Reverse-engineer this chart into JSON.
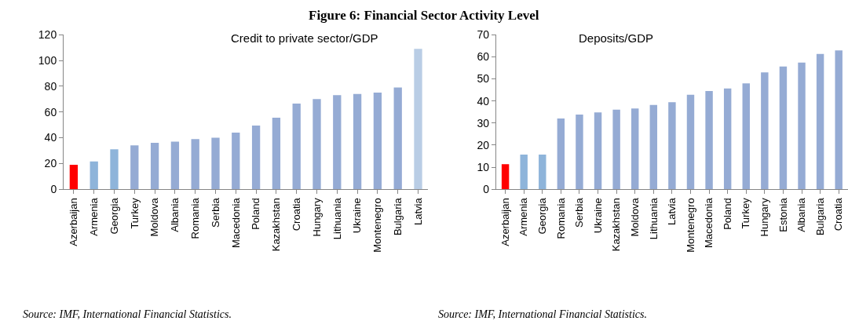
{
  "chart_data": [
    {
      "type": "bar",
      "title": "Figure 6: Financial Sector Activity Level",
      "subtitle": "Credit to private sector/GDP",
      "categories": [
        "Azerbaijan",
        "Armenia",
        "Georgia",
        "Turkey",
        "Moldova",
        "Albania",
        "Romania",
        "Serbia",
        "Macedonia",
        "Poland",
        "Kazakhstan",
        "Croatia",
        "Hungary",
        "Lithuania",
        "Ukraine",
        "Montenegro",
        "Bulgaria",
        "Latvia"
      ],
      "values": [
        19,
        21.5,
        31,
        34,
        36,
        37,
        39,
        40,
        44,
        49.5,
        55.5,
        66.5,
        70,
        73,
        74,
        75,
        79,
        109
      ],
      "colors": [
        "#ff0000",
        "#8eb4da",
        "#8eb4da",
        "#95abd4",
        "#95abd4",
        "#95abd4",
        "#95abd4",
        "#95abd4",
        "#95abd4",
        "#95abd4",
        "#95abd4",
        "#95abd4",
        "#95abd4",
        "#95abd4",
        "#95abd4",
        "#95abd4",
        "#95abd4",
        "#b9cde5"
      ],
      "ylim": [
        0,
        120
      ],
      "yticks": [
        0,
        20,
        40,
        60,
        80,
        100,
        120
      ],
      "annotations": [
        "Source: IMF, International Financial Statistics."
      ]
    },
    {
      "type": "bar",
      "subtitle": "Deposits/GDP",
      "categories": [
        "Azerbaijan",
        "Armenia",
        "Georgia",
        "Romania",
        "Serbia",
        "Ukraine",
        "Kazakhstan",
        "Moldova",
        "Lithuania",
        "Latvia",
        "Montenegro",
        "Macedonia",
        "Poland",
        "Turkey",
        "Hungary",
        "Estonia",
        "Albania",
        "Bulgaria",
        "Croatia"
      ],
      "values": [
        11.3,
        15.7,
        15.7,
        32,
        33.8,
        34.8,
        36,
        36.6,
        38.2,
        39.4,
        42.8,
        44.5,
        45.6,
        47.9,
        52.9,
        55.6,
        57.4,
        61.3,
        62.9
      ],
      "colors": [
        "#ff0000",
        "#8eb4da",
        "#8eb4da",
        "#95abd4",
        "#95abd4",
        "#95abd4",
        "#95abd4",
        "#95abd4",
        "#95abd4",
        "#95abd4",
        "#95abd4",
        "#95abd4",
        "#95abd4",
        "#95abd4",
        "#95abd4",
        "#95abd4",
        "#95abd4",
        "#95abd4",
        "#95abd4"
      ],
      "ylim": [
        0,
        70
      ],
      "yticks": [
        0,
        10,
        20,
        30,
        40,
        50,
        60,
        70
      ],
      "annotations": [
        "Source: IMF, International Financial Statistics."
      ]
    }
  ]
}
